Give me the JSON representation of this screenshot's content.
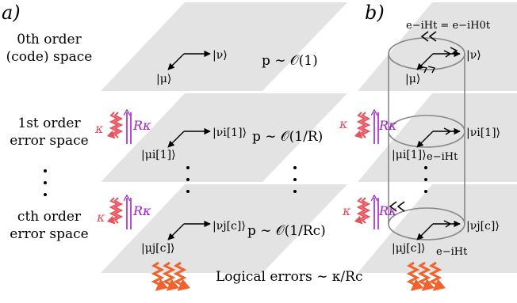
{
  "panel_a": {
    "label": "a)",
    "levels": [
      {
        "name_line1": "0th order",
        "name_line2": "(code) space",
        "ket_mu": "|μ⟩",
        "ket_nu": "|ν⟩",
        "prob": "p ∼ 𝒪(1)"
      },
      {
        "name_line1": "1st order",
        "name_line2": "error space",
        "ket_mu": "|μi[1]⟩",
        "ket_nu": "|νi[1]⟩",
        "prob": "p ∼ 𝒪(1/R)"
      },
      {
        "name_line1": "cth order",
        "name_line2": "error space",
        "ket_mu": "|μj[c]⟩",
        "ket_nu": "|νj[c]⟩",
        "prob": "p ∼ 𝒪(1/Rc)"
      }
    ],
    "rate_kappa": "κ",
    "rate_Rkappa": "Rκ",
    "logical_errors": "Logical errors ∼ κ/Rc"
  },
  "panel_b": {
    "label": "b)",
    "top_evolution": "e−iHt = e−iH0t",
    "evolution": "e−iHt",
    "ket_mu": "|μ⟩",
    "ket_nu": "|ν⟩",
    "ket_mu1": "|μi[1]⟩",
    "ket_nu1": "|νi[1]⟩",
    "ket_muc": "|μj[c]⟩",
    "ket_nuc": "|νj[c]⟩",
    "rate_kappa": "κ",
    "rate_Rkappa": "Rκ"
  },
  "colors": {
    "plane": "#e3e3e3",
    "kappa": "#e8505b",
    "Rkappa": "#a020c8",
    "logical_error": "#f2622c",
    "cylinder": "#888888"
  }
}
